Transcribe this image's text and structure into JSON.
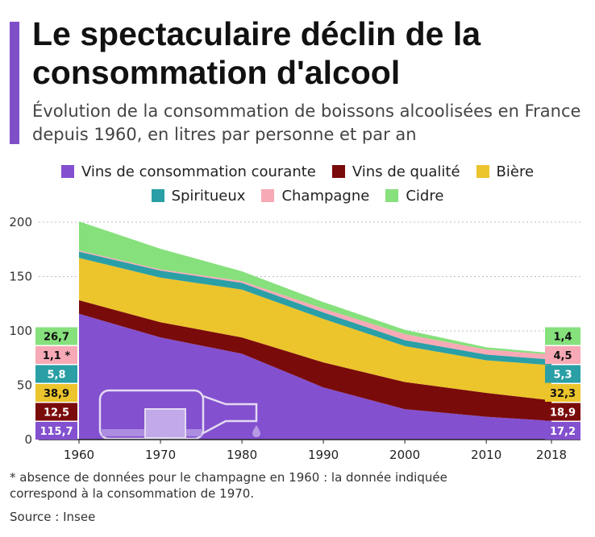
{
  "header": {
    "title": "Le spectaculaire déclin de la consommation d'alcool",
    "subtitle": "Évolution de la consommation de boissons alcoolisées en France depuis 1960, en litres par personne et par an",
    "accent_color": "#7e4fc8"
  },
  "chart_data": {
    "type": "area",
    "stacked": true,
    "title": "Le spectaculaire déclin de la consommation d'alcool",
    "subtitle": "Évolution de la consommation de boissons alcoolisées en France depuis 1960, en litres par personne et par an",
    "x": [
      1960,
      1970,
      1980,
      1990,
      2000,
      2010,
      2018
    ],
    "ylim": [
      0,
      200
    ],
    "yticks": [
      0,
      50,
      100,
      150,
      200
    ],
    "grid": true,
    "legend_position": "top",
    "series": [
      {
        "name": "Vins de consommation courante",
        "color": "#8350cf",
        "values": [
          115.7,
          94,
          79,
          48,
          28,
          21,
          17.2
        ]
      },
      {
        "name": "Vins de qualité",
        "color": "#7a0b0b",
        "values": [
          12.5,
          14,
          15,
          23,
          25,
          22,
          18.9
        ]
      },
      {
        "name": "Bière",
        "color": "#ecc42c",
        "values": [
          38.9,
          41,
          44,
          40,
          33,
          30,
          32.3
        ]
      },
      {
        "name": "Spiritueux",
        "color": "#2a9fa6",
        "values": [
          5.8,
          6.5,
          6.2,
          6,
          5.5,
          5.2,
          5.3
        ]
      },
      {
        "name": "Champagne",
        "color": "#f7a9b6",
        "values": [
          1.1,
          1.1,
          1.6,
          3.5,
          5.5,
          4.7,
          4.5
        ]
      },
      {
        "name": "Cidre",
        "color": "#86e07c",
        "values": [
          26.7,
          19,
          9,
          6,
          4,
          2,
          1.4
        ]
      }
    ],
    "start_labels": [
      "115,7",
      "12,5",
      "38,9",
      "5,8",
      "1,1 *",
      "26,7"
    ],
    "end_labels": [
      "17,2",
      "18,9",
      "32,3",
      "5,3",
      "4,5",
      "1,4"
    ],
    "label_text_colors": [
      "#ffffff",
      "#ffffff",
      "#111111",
      "#ffffff",
      "#111111",
      "#111111"
    ]
  },
  "footnote": "* absence de données pour le champagne en 1960 : la donnée indiquée correspond à la consommation de 1970.",
  "source": "Source : Insee"
}
